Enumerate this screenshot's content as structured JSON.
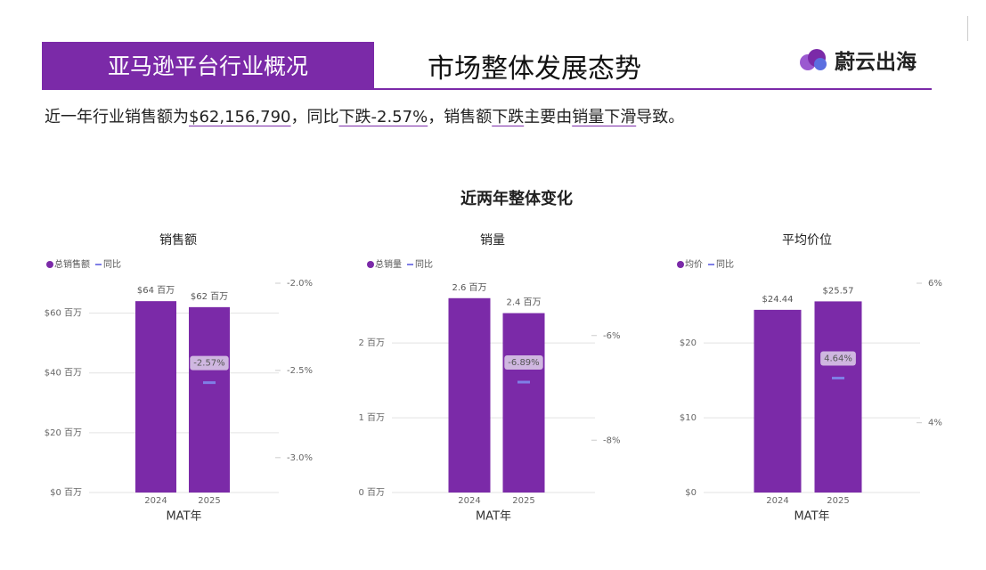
{
  "header": {
    "section": "亚马逊平台行业概况",
    "title": "市场整体发展态势",
    "logo": "蔚云出海"
  },
  "summary": [
    {
      "text": "近一年行业销售额为",
      "underline": false
    },
    {
      "text": "$62,156,790",
      "underline": true
    },
    {
      "text": "，同比",
      "underline": false
    },
    {
      "text": "下跌-2.57%",
      "underline": true
    },
    {
      "text": "，销售额",
      "underline": false
    },
    {
      "text": "下跌",
      "underline": true
    },
    {
      "text": "主要由",
      "underline": false
    },
    {
      "text": "销量下滑",
      "underline": true
    },
    {
      "text": "导致。",
      "underline": false
    }
  ],
  "section_title": "近两年整体变化",
  "chart_data": [
    {
      "type": "bar",
      "title": "销售额",
      "x_label": "MAT年",
      "categories": [
        "2024",
        "2025"
      ],
      "series": [
        {
          "name": "总销售额",
          "type": "bar",
          "color": "#7b2aa8",
          "values": [
            64,
            62
          ],
          "value_labels": [
            "$64 百万",
            "$62 百万"
          ]
        },
        {
          "name": "同比",
          "type": "line",
          "axis": "y2",
          "color": "#7f7fe6",
          "values": [
            null,
            -2.57
          ],
          "value_labels": [
            null,
            "-2.57%"
          ]
        }
      ],
      "ylim": [
        0,
        70
      ],
      "yticks": [
        {
          "value": 0,
          "label": "$0 百万"
        },
        {
          "value": 20,
          "label": "$20 百万"
        },
        {
          "value": 40,
          "label": "$40 百万"
        },
        {
          "value": 60,
          "label": "$60 百万"
        }
      ],
      "y2lim": [
        -3.2,
        -2.0
      ],
      "y2ticks": [
        {
          "value": -3.0,
          "label": "-3.0%"
        },
        {
          "value": -2.5,
          "label": "-2.5%"
        },
        {
          "value": -2.0,
          "label": "-2.0%"
        }
      ],
      "grid": true
    },
    {
      "type": "bar",
      "title": "销量",
      "x_label": "MAT年",
      "categories": [
        "2024",
        "2025"
      ],
      "series": [
        {
          "name": "总销量",
          "type": "bar",
          "color": "#7b2aa8",
          "values": [
            2.6,
            2.4
          ],
          "value_labels": [
            "2.6 百万",
            "2.4 百万"
          ]
        },
        {
          "name": "同比",
          "type": "line",
          "axis": "y2",
          "color": "#7f7fe6",
          "values": [
            null,
            -6.89
          ],
          "value_labels": [
            null,
            "-6.89%"
          ]
        }
      ],
      "ylim": [
        0,
        2.8
      ],
      "yticks": [
        {
          "value": 0,
          "label": "0 百万"
        },
        {
          "value": 1,
          "label": "1 百万"
        },
        {
          "value": 2,
          "label": "2 百万"
        }
      ],
      "y2lim": [
        -9,
        -5
      ],
      "y2ticks": [
        {
          "value": -8,
          "label": "-8%"
        },
        {
          "value": -6,
          "label": "-6%"
        }
      ],
      "grid": true
    },
    {
      "type": "bar",
      "title": "平均价位",
      "x_label": "MAT年",
      "categories": [
        "2024",
        "2025"
      ],
      "series": [
        {
          "name": "均价",
          "type": "bar",
          "color": "#7b2aa8",
          "values": [
            24.44,
            25.57
          ],
          "value_labels": [
            "$24.44",
            "$25.57"
          ]
        },
        {
          "name": "同比",
          "type": "line",
          "axis": "y2",
          "color": "#7f7fe6",
          "values": [
            null,
            4.64
          ],
          "value_labels": [
            null,
            "4.64%"
          ]
        }
      ],
      "ylim": [
        0,
        28
      ],
      "yticks": [
        {
          "value": 0,
          "label": "$0"
        },
        {
          "value": 10,
          "label": "$10"
        },
        {
          "value": 20,
          "label": "$20"
        }
      ],
      "y2lim": [
        3,
        6
      ],
      "y2ticks": [
        {
          "value": 4,
          "label": "4%"
        },
        {
          "value": 6,
          "label": "6%"
        }
      ],
      "grid": true
    }
  ]
}
